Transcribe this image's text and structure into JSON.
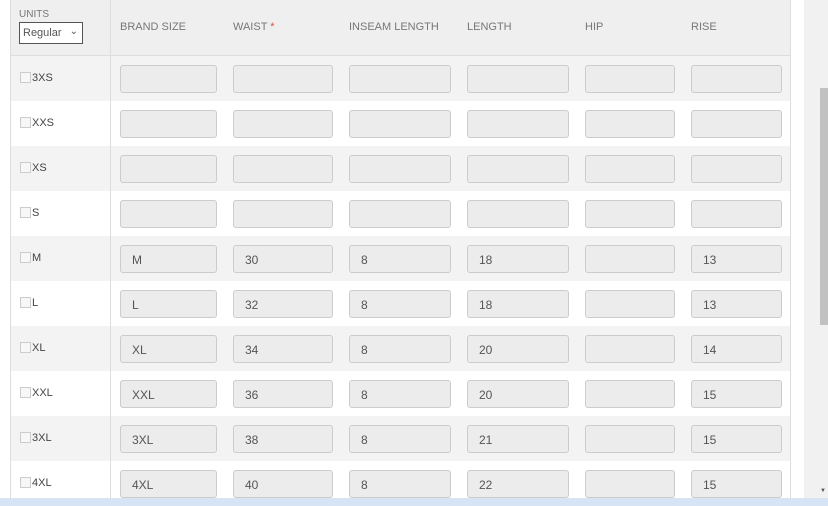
{
  "units": {
    "label": "UNITS",
    "selected": "Regular"
  },
  "headers": {
    "brand": "BRAND SIZE",
    "waist": "WAIST",
    "required": "*",
    "inseam": "INSEAM LENGTH",
    "length": "LENGTH",
    "hip": "HIP",
    "rise": "RISE"
  },
  "rows": [
    {
      "size": "3XS",
      "brand": "",
      "waist": "",
      "inseam": "",
      "length": "",
      "hip": "",
      "rise": ""
    },
    {
      "size": "XXS",
      "brand": "",
      "waist": "",
      "inseam": "",
      "length": "",
      "hip": "",
      "rise": ""
    },
    {
      "size": "XS",
      "brand": "",
      "waist": "",
      "inseam": "",
      "length": "",
      "hip": "",
      "rise": ""
    },
    {
      "size": "S",
      "brand": "",
      "waist": "",
      "inseam": "",
      "length": "",
      "hip": "",
      "rise": ""
    },
    {
      "size": "M",
      "brand": "M",
      "waist": "30",
      "inseam": "8",
      "length": "18",
      "hip": "",
      "rise": "13"
    },
    {
      "size": "L",
      "brand": "L",
      "waist": "32",
      "inseam": "8",
      "length": "18",
      "hip": "",
      "rise": "13"
    },
    {
      "size": "XL",
      "brand": "XL",
      "waist": "34",
      "inseam": "8",
      "length": "20",
      "hip": "",
      "rise": "14"
    },
    {
      "size": "XXL",
      "brand": "XXL",
      "waist": "36",
      "inseam": "8",
      "length": "20",
      "hip": "",
      "rise": "15"
    },
    {
      "size": "3XL",
      "brand": "3XL",
      "waist": "38",
      "inseam": "8",
      "length": "21",
      "hip": "",
      "rise": "15"
    },
    {
      "size": "4XL",
      "brand": "4XL",
      "waist": "40",
      "inseam": "8",
      "length": "22",
      "hip": "",
      "rise": "15"
    }
  ]
}
